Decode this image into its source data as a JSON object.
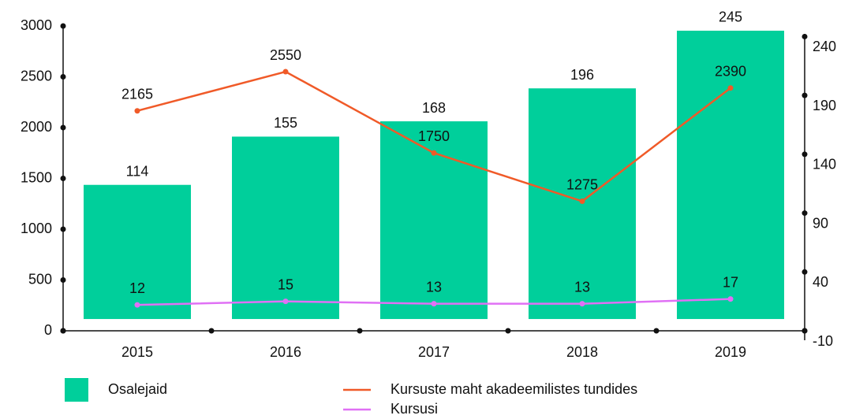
{
  "chart_data": {
    "type": "bar",
    "categories": [
      "2015",
      "2016",
      "2017",
      "2018",
      "2019"
    ],
    "series": [
      {
        "name": "Osalejaid",
        "type": "bar",
        "color": "#00cf9b",
        "axis": "y2",
        "values": [
          114,
          155,
          168,
          196,
          245
        ]
      },
      {
        "name": "Kursuste maht akadeemilistes tundides",
        "type": "line",
        "color": "#f05a28",
        "values": [
          2165,
          2550,
          1750,
          1275,
          2390
        ]
      },
      {
        "name": "Kursusi",
        "type": "line",
        "color": "#e070f5",
        "axis": "y2",
        "values": [
          12,
          15,
          13,
          13,
          17
        ]
      }
    ],
    "ylim": [
      0,
      3000
    ],
    "yticks": [
      0,
      500,
      1000,
      1500,
      2000,
      2500,
      3000
    ],
    "y2lim": [
      -10,
      249
    ],
    "y2ticks": [
      -10,
      40,
      90,
      140,
      190,
      240
    ],
    "legend": "bottom"
  }
}
